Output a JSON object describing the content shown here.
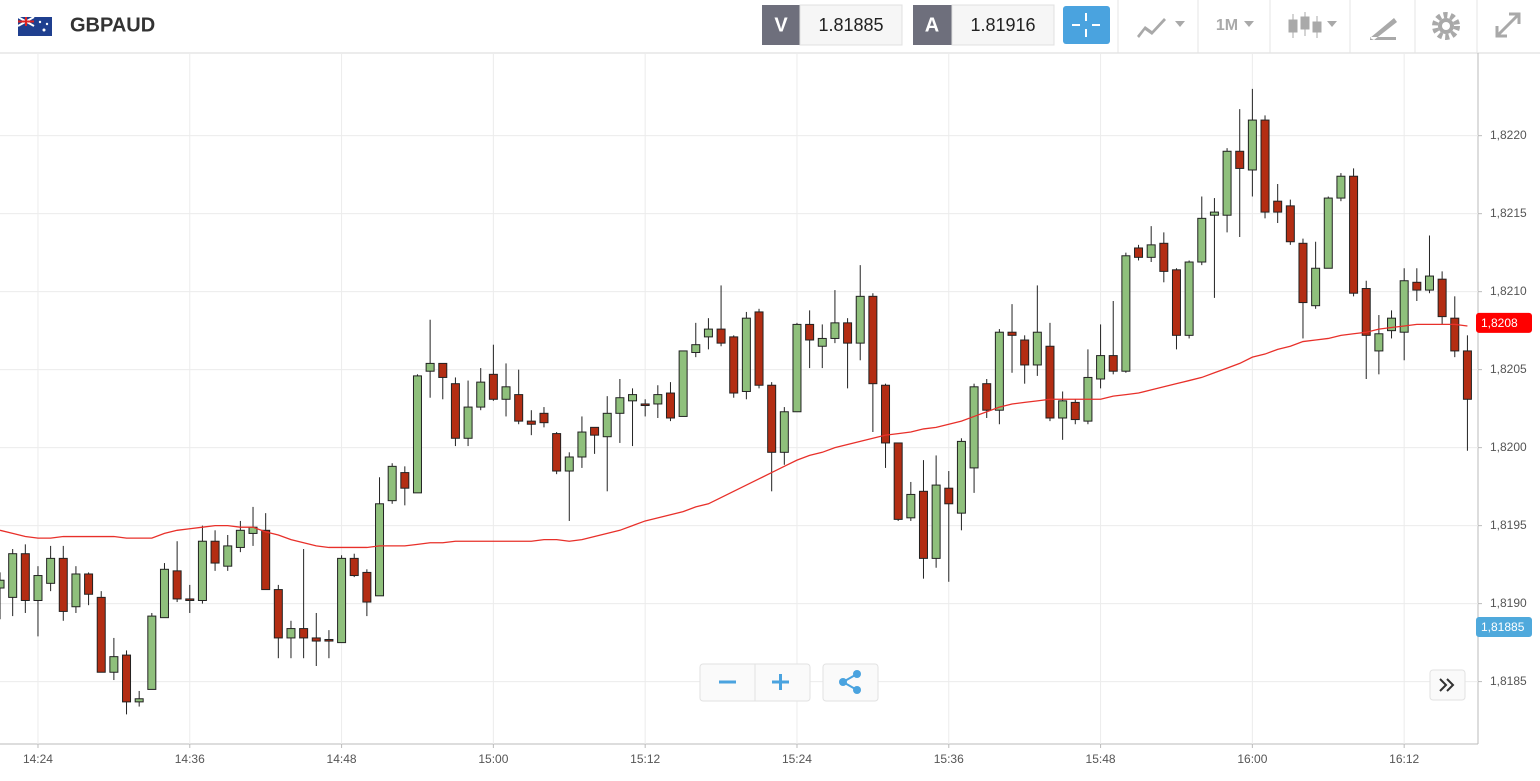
{
  "header": {
    "symbol": "GBPAUD",
    "sell_label": "V",
    "sell_price": "1.81885",
    "buy_label": "A",
    "buy_price": "1.81916",
    "timeframe": "1M"
  },
  "chart_data": {
    "type": "candlestick",
    "categories": [
      null,
      null,
      null,
      "14:24",
      null,
      null,
      null,
      null,
      null,
      null,
      null,
      null,
      null,
      null,
      null,
      "14:36",
      null,
      null,
      null,
      null,
      null,
      null,
      null,
      null,
      null,
      null,
      null,
      "14:48",
      null,
      null,
      null,
      null,
      null,
      null,
      null,
      null,
      null,
      null,
      null,
      "15:00",
      null,
      null,
      null,
      null,
      null,
      null,
      null,
      null,
      null,
      null,
      null,
      "15:12",
      null,
      null,
      null,
      null,
      null,
      null,
      null,
      null,
      null,
      null,
      null,
      "15:24",
      null,
      null,
      null,
      null,
      null,
      null,
      null,
      null,
      null,
      null,
      null,
      "15:36",
      null,
      null,
      null,
      null,
      null,
      null,
      null,
      null,
      null,
      null,
      null,
      "15:48",
      null,
      null,
      null,
      null,
      null,
      null,
      null,
      null,
      null,
      null,
      null,
      "16:00",
      null,
      null,
      null,
      null,
      null,
      null,
      null,
      null,
      null,
      null,
      null,
      "16:12",
      null,
      null,
      null,
      null,
      null
    ],
    "open": [
      1.8191,
      1.81904,
      1.81932,
      1.81902,
      1.81913,
      1.81929,
      1.81898,
      1.81919,
      1.81904,
      1.81856,
      1.81867,
      1.81837,
      1.81845,
      1.81891,
      1.81921,
      1.81903,
      1.81902,
      1.8194,
      1.81924,
      1.81936,
      1.81945,
      1.81947,
      1.81909,
      1.81878,
      1.81884,
      1.81878,
      1.81877,
      1.81875,
      1.81929,
      1.8192,
      1.81905,
      1.81966,
      1.81984,
      1.81971,
      1.82049,
      1.82054,
      1.82041,
      1.82006,
      1.82026,
      1.82047,
      1.82031,
      1.82034,
      1.82017,
      1.82022,
      1.82009,
      1.81985,
      1.81994,
      1.82013,
      1.82007,
      1.82022,
      1.8203,
      1.82028,
      1.82028,
      1.82035,
      1.8202,
      1.82061,
      1.82071,
      1.82076,
      1.82071,
      1.82036,
      1.82087,
      1.8204,
      1.81997,
      1.82023,
      1.82079,
      1.82065,
      1.8207,
      1.8208,
      1.82067,
      1.82097,
      1.8204,
      1.82003,
      1.81955,
      1.81972,
      1.81929,
      1.81974,
      1.81958,
      1.81987,
      1.82041,
      1.82024,
      1.82074,
      1.82069,
      1.82053,
      1.82065,
      1.82019,
      1.82029,
      1.82017,
      1.82044,
      1.82059,
      1.82049,
      1.82128,
      1.82122,
      1.82131,
      1.82114,
      1.82072,
      1.82119,
      1.82149,
      1.82149,
      1.8219,
      1.82178,
      1.8221,
      1.82158,
      1.82155,
      1.82131,
      1.82091,
      1.82115,
      1.8216,
      1.82174,
      1.82102,
      1.82062,
      1.82075,
      1.82074,
      1.82106,
      1.82101,
      1.82108,
      1.82083,
      1.82062
    ],
    "high": [
      1.8192,
      1.81935,
      1.81938,
      1.81924,
      1.81937,
      1.81937,
      1.81924,
      1.8192,
      1.81908,
      1.81878,
      1.8187,
      1.81844,
      1.81894,
      1.81926,
      1.8194,
      1.81912,
      1.8195,
      1.81947,
      1.81944,
      1.81953,
      1.81962,
      1.81958,
      1.81912,
      1.81889,
      1.81935,
      1.81894,
      1.81883,
      1.81931,
      1.81932,
      1.81922,
      1.81981,
      1.8199,
      1.81988,
      1.82047,
      1.82082,
      1.82054,
      1.82045,
      1.82043,
      1.82051,
      1.82066,
      1.82054,
      1.8205,
      1.82024,
      1.82026,
      1.8201,
      1.81997,
      1.8202,
      1.82013,
      1.82033,
      1.82044,
      1.82038,
      1.82031,
      1.8204,
      1.82042,
      1.82062,
      1.8208,
      1.82083,
      1.82104,
      1.82072,
      1.82087,
      1.82089,
      1.82042,
      1.82026,
      1.8208,
      1.82088,
      1.82079,
      1.82101,
      1.82083,
      1.82117,
      1.82099,
      1.82041,
      1.82003,
      1.81978,
      1.81992,
      1.81995,
      1.81985,
      1.82006,
      1.82041,
      1.82044,
      1.82076,
      1.82092,
      1.82072,
      1.82104,
      1.8208,
      1.82036,
      1.82031,
      1.82063,
      1.82079,
      1.82094,
      1.82125,
      1.8213,
      1.82142,
      1.82138,
      1.82115,
      1.8212,
      1.82161,
      1.8216,
      1.82192,
      1.82217,
      1.8223,
      1.82213,
      1.82169,
      1.82159,
      1.82134,
      1.82132,
      1.82161,
      1.82176,
      1.82179,
      1.82107,
      1.82085,
      1.82088,
      1.82115,
      1.82115,
      1.82136,
      1.82113,
      1.82097,
      1.82072
    ],
    "low": [
      1.8189,
      1.81892,
      1.81894,
      1.81879,
      1.81908,
      1.81889,
      1.81894,
      1.81899,
      1.81856,
      1.81851,
      1.81829,
      1.81834,
      1.81845,
      1.81891,
      1.81901,
      1.81894,
      1.819,
      1.81921,
      1.81921,
      1.81933,
      1.81937,
      1.81909,
      1.81865,
      1.81865,
      1.81865,
      1.8186,
      1.81865,
      1.81875,
      1.81917,
      1.81892,
      1.81905,
      1.81964,
      1.81963,
      1.81971,
      1.82032,
      1.82031,
      1.82001,
      1.82001,
      1.82024,
      1.8203,
      1.8202,
      1.82015,
      1.82008,
      1.82013,
      1.81983,
      1.81953,
      1.81987,
      1.81996,
      1.81972,
      1.82003,
      1.82001,
      1.8202,
      1.82019,
      1.82017,
      1.8202,
      1.82058,
      1.82063,
      1.82065,
      1.82032,
      1.82031,
      1.82038,
      1.81972,
      1.81989,
      1.82023,
      1.82051,
      1.82051,
      1.82067,
      1.82038,
      1.82056,
      1.8201,
      1.81987,
      1.81953,
      1.81953,
      1.81916,
      1.81923,
      1.81914,
      1.81947,
      1.81971,
      1.82019,
      1.82015,
      1.82048,
      1.82041,
      1.82046,
      1.82017,
      1.82005,
      1.82015,
      1.82015,
      1.82038,
      1.82047,
      1.82048,
      1.8212,
      1.82119,
      1.82106,
      1.82063,
      1.8207,
      1.82117,
      1.82096,
      1.82138,
      1.82135,
      1.82161,
      1.82147,
      1.82144,
      1.8213,
      1.8207,
      1.82089,
      1.82115,
      1.82158,
      1.82097,
      1.82044,
      1.82047,
      1.8207,
      1.82056,
      1.82094,
      1.82099,
      1.82079,
      1.82058,
      1.81998
    ],
    "close": [
      1.81915,
      1.81932,
      1.81902,
      1.81918,
      1.81929,
      1.81895,
      1.81919,
      1.81906,
      1.81856,
      1.81866,
      1.81837,
      1.81839,
      1.81892,
      1.81922,
      1.81903,
      1.81902,
      1.8194,
      1.81926,
      1.81937,
      1.81947,
      1.81949,
      1.81909,
      1.81878,
      1.81884,
      1.81878,
      1.81876,
      1.81876,
      1.81929,
      1.81918,
      1.81901,
      1.81964,
      1.81988,
      1.81974,
      1.82046,
      1.82054,
      1.82045,
      1.82006,
      1.82026,
      1.82042,
      1.82031,
      1.82039,
      1.82017,
      1.82015,
      1.82016,
      1.81985,
      1.81994,
      1.8201,
      1.82008,
      1.82022,
      1.82032,
      1.82034,
      1.82027,
      1.82034,
      1.82019,
      1.82062,
      1.82066,
      1.82076,
      1.82067,
      1.82035,
      1.82083,
      1.8204,
      1.81997,
      1.82023,
      1.82079,
      1.82069,
      1.8207,
      1.8208,
      1.82067,
      1.82097,
      1.82041,
      1.82003,
      1.81954,
      1.8197,
      1.81929,
      1.81976,
      1.81964,
      1.82004,
      1.82039,
      1.82024,
      1.82074,
      1.82072,
      1.82053,
      1.82074,
      1.82019,
      1.8203,
      1.82018,
      1.82045,
      1.82059,
      1.82049,
      1.82123,
      1.82122,
      1.8213,
      1.82113,
      1.82072,
      1.82119,
      1.82147,
      1.82151,
      1.8219,
      1.82179,
      1.8221,
      1.82151,
      1.82151,
      1.82132,
      1.82093,
      1.82115,
      1.8216,
      1.82174,
      1.82099,
      1.82072,
      1.82073,
      1.82083,
      1.82107,
      1.82101,
      1.8211,
      1.82084,
      1.82062,
      1.82031
    ],
    "up_color": "#8fc07c",
    "down_color": "#b32d13",
    "ma": {
      "color": "#e8302a",
      "values": [
        1.81947,
        1.81945,
        1.81943,
        1.81942,
        1.81942,
        1.81943,
        1.81943,
        1.81943,
        1.81943,
        1.81943,
        1.81942,
        1.81942,
        1.81942,
        1.81945,
        1.81947,
        1.81948,
        1.81949,
        1.8195,
        1.8195,
        1.81949,
        1.81949,
        1.81946,
        1.81944,
        1.81941,
        1.81939,
        1.81937,
        1.81936,
        1.81936,
        1.81936,
        1.81936,
        1.81937,
        1.81937,
        1.81937,
        1.81938,
        1.81939,
        1.81939,
        1.8194,
        1.8194,
        1.8194,
        1.8194,
        1.8194,
        1.8194,
        1.8194,
        1.81941,
        1.81941,
        1.8194,
        1.81941,
        1.81943,
        1.81945,
        1.81947,
        1.8195,
        1.81953,
        1.81955,
        1.81957,
        1.81959,
        1.81962,
        1.81964,
        1.81968,
        1.81972,
        1.81976,
        1.8198,
        1.81984,
        1.81988,
        1.81992,
        1.81995,
        1.81997,
        1.82,
        1.82002,
        1.82004,
        1.82006,
        1.82008,
        1.82009,
        1.8201,
        1.82012,
        1.82013,
        1.82015,
        1.82017,
        1.8202,
        1.82023,
        1.82026,
        1.82028,
        1.82029,
        1.8203,
        1.82031,
        1.82031,
        1.82031,
        1.82031,
        1.82031,
        1.82033,
        1.82034,
        1.82035,
        1.82037,
        1.82039,
        1.82041,
        1.82043,
        1.82045,
        1.82048,
        1.82051,
        1.82054,
        1.82058,
        1.8206,
        1.82063,
        1.82065,
        1.82068,
        1.82069,
        1.8207,
        1.82072,
        1.82073,
        1.82074,
        1.82076,
        1.82077,
        1.82078,
        1.82079,
        1.82079,
        1.82079,
        1.82079,
        1.82078
      ]
    },
    "ylim": [
      1.8181,
      1.82253
    ],
    "yticks": [
      {
        "value": 1.8185,
        "label": "1,8185"
      },
      {
        "value": 1.819,
        "label": "1,8190"
      },
      {
        "value": 1.8195,
        "label": "1,8195"
      },
      {
        "value": 1.82,
        "label": "1,8200"
      },
      {
        "value": 1.8205,
        "label": "1,8205"
      },
      {
        "value": 1.821,
        "label": "1,8210"
      },
      {
        "value": 1.8215,
        "label": "1,8215"
      },
      {
        "value": 1.822,
        "label": "1,8220"
      }
    ],
    "grid": true,
    "price_markers": [
      {
        "value": 1.8208,
        "label": "1,8208",
        "color": "#ff0000"
      },
      {
        "value": 1.81885,
        "label": "1,81885",
        "color": "#4fa9dc"
      }
    ]
  }
}
